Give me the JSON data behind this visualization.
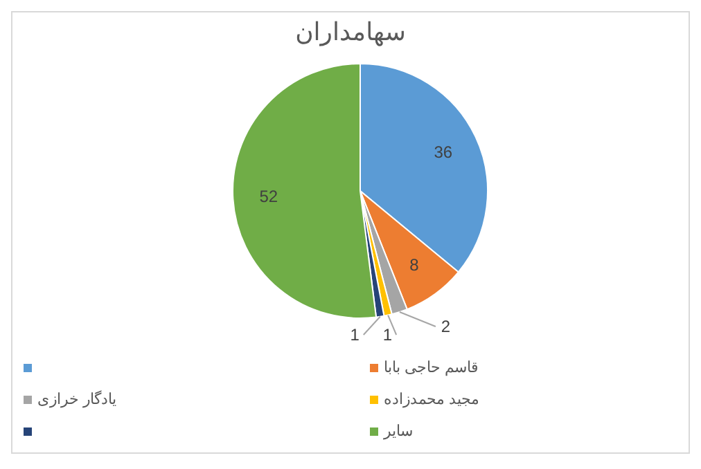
{
  "chart_data": {
    "type": "pie",
    "title": "سهامداران",
    "categories": [
      null,
      "قاسم حاجی بابا",
      "یادگار خرازی",
      "مجید محمدزاده",
      null,
      "سایر"
    ],
    "values": [
      36,
      8,
      2,
      1,
      1,
      52
    ],
    "colors": [
      "#5b9bd5",
      "#ed7d31",
      "#a5a5a5",
      "#ffc000",
      "#264478",
      "#70ad47"
    ],
    "data_labels": true,
    "legend": "bottom"
  }
}
